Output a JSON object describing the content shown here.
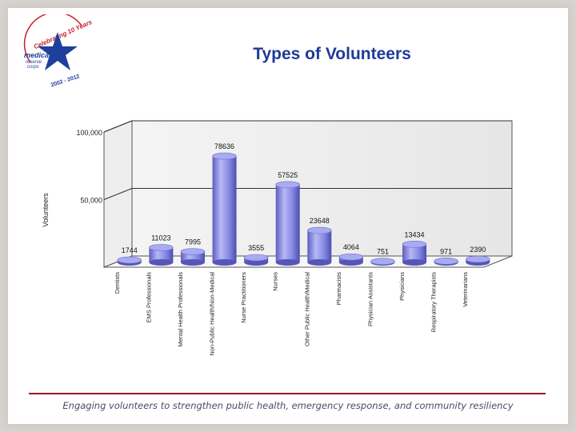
{
  "slide": {
    "title": "Types of Volunteers",
    "footer": "Engaging volunteers to strengthen public health, emergency response, and community resiliency",
    "logo": {
      "text_top": "Celebrating 10 Years",
      "text_mid1": "medical",
      "text_mid2": "reserve",
      "text_mid3": "corps",
      "years": "2002 - 2012",
      "star_color": "#1e3f9c",
      "text_color": "#c8202f"
    }
  },
  "chart_data": {
    "type": "bar",
    "title": "",
    "xlabel": "",
    "ylabel": "Volunteers",
    "ylim": [
      0,
      100000
    ],
    "ytick_values": [
      50000,
      100000
    ],
    "ytick_labels": [
      "50,000",
      "100,000"
    ],
    "categories": [
      "Dentists",
      "EMS Professionals",
      "Mental Health Professionals",
      "Non-Public Health/Non-Medical",
      "Nurse Practitioners",
      "Nurses",
      "Other Public Health/Medical",
      "Pharmacists",
      "Physician Assistants",
      "Physicians",
      "Respiratory Therapists",
      "Veterinarians"
    ],
    "values": [
      1744,
      11023,
      7995,
      78636,
      3555,
      57525,
      23648,
      4064,
      751,
      13434,
      971,
      2390
    ],
    "value_labels": [
      "1744",
      "11023",
      "7995",
      "78636",
      "3555",
      "57525",
      "23648",
      "4064",
      "751",
      "13434",
      "971",
      "2390"
    ],
    "bar_color": "#8a8ce6",
    "grid": true
  }
}
